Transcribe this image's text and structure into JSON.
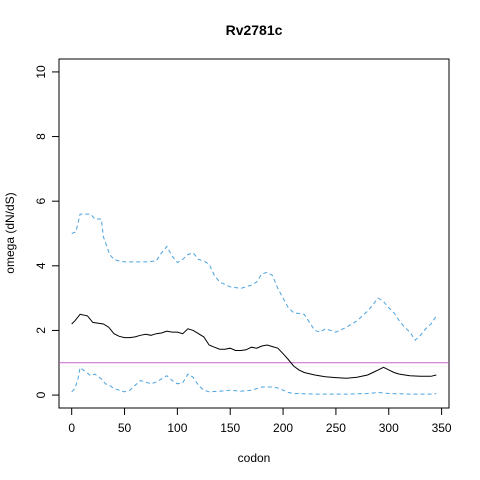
{
  "chart_data": {
    "type": "line",
    "title": "Rv2781c",
    "xlabel": "codon",
    "ylabel": "omega (dN/dS)",
    "xlim": [
      -12,
      357
    ],
    "ylim": [
      -0.4,
      10.4
    ],
    "xticks": [
      0,
      50,
      100,
      150,
      200,
      250,
      300,
      350
    ],
    "yticks": [
      0,
      2,
      4,
      6,
      8,
      10
    ],
    "grid": false,
    "reference_line": {
      "y": 1,
      "color": "#cc66cc"
    },
    "series": [
      {
        "style": "dashed",
        "color": "#4aa3df",
        "x": [
          0,
          4,
          8,
          18,
          22,
          28,
          30,
          36,
          40,
          45,
          50,
          60,
          70,
          80,
          85,
          90,
          95,
          100,
          105,
          110,
          115,
          120,
          125,
          130,
          135,
          140,
          150,
          160,
          170,
          175,
          180,
          185,
          190,
          195,
          200,
          205,
          210,
          220,
          230,
          235,
          240,
          250,
          260,
          270,
          280,
          285,
          290,
          295,
          300,
          305,
          310,
          315,
          320,
          325,
          330,
          335,
          340,
          345
        ],
        "y": [
          5.0,
          5.05,
          5.6,
          5.6,
          5.45,
          5.45,
          4.9,
          4.35,
          4.2,
          4.15,
          4.12,
          4.12,
          4.12,
          4.15,
          4.4,
          4.6,
          4.3,
          4.1,
          4.2,
          4.35,
          4.4,
          4.2,
          4.15,
          4.05,
          3.7,
          3.5,
          3.35,
          3.3,
          3.4,
          3.5,
          3.75,
          3.8,
          3.7,
          3.3,
          3.0,
          2.7,
          2.55,
          2.5,
          2.0,
          1.95,
          2.05,
          1.95,
          2.1,
          2.3,
          2.6,
          2.8,
          3.0,
          2.9,
          2.7,
          2.55,
          2.3,
          2.1,
          1.95,
          1.7,
          1.85,
          2.05,
          2.2,
          2.45
        ]
      },
      {
        "style": "solid",
        "color": "#000000",
        "x": [
          0,
          3,
          8,
          15,
          20,
          30,
          35,
          40,
          45,
          50,
          55,
          60,
          65,
          70,
          75,
          80,
          85,
          90,
          95,
          100,
          105,
          110,
          115,
          120,
          125,
          130,
          135,
          140,
          145,
          150,
          155,
          160,
          165,
          170,
          175,
          180,
          185,
          190,
          195,
          200,
          205,
          210,
          215,
          220,
          230,
          240,
          250,
          260,
          270,
          280,
          285,
          290,
          295,
          300,
          305,
          310,
          320,
          330,
          340,
          345
        ],
        "y": [
          2.2,
          2.3,
          2.5,
          2.45,
          2.25,
          2.2,
          2.1,
          1.9,
          1.82,
          1.78,
          1.78,
          1.8,
          1.85,
          1.88,
          1.85,
          1.9,
          1.92,
          1.98,
          1.95,
          1.95,
          1.9,
          2.05,
          2.0,
          1.9,
          1.8,
          1.55,
          1.48,
          1.42,
          1.42,
          1.45,
          1.38,
          1.38,
          1.4,
          1.48,
          1.45,
          1.52,
          1.55,
          1.5,
          1.45,
          1.28,
          1.1,
          0.9,
          0.78,
          0.7,
          0.62,
          0.57,
          0.54,
          0.52,
          0.55,
          0.62,
          0.7,
          0.78,
          0.86,
          0.78,
          0.7,
          0.65,
          0.6,
          0.58,
          0.58,
          0.62
        ]
      },
      {
        "style": "dashed",
        "color": "#4aa3df",
        "x": [
          0,
          3,
          6,
          8,
          12,
          18,
          22,
          28,
          32,
          36,
          40,
          50,
          55,
          60,
          65,
          70,
          75,
          80,
          85,
          90,
          95,
          100,
          105,
          110,
          115,
          120,
          125,
          130,
          140,
          150,
          160,
          170,
          180,
          190,
          195,
          200,
          205,
          210,
          220,
          230,
          240,
          250,
          260,
          270,
          280,
          290,
          300,
          310,
          320,
          330,
          340,
          345
        ],
        "y": [
          0.1,
          0.2,
          0.5,
          0.85,
          0.75,
          0.6,
          0.65,
          0.5,
          0.35,
          0.3,
          0.2,
          0.1,
          0.15,
          0.3,
          0.45,
          0.4,
          0.35,
          0.4,
          0.5,
          0.6,
          0.45,
          0.35,
          0.38,
          0.65,
          0.55,
          0.3,
          0.15,
          0.1,
          0.12,
          0.15,
          0.12,
          0.15,
          0.25,
          0.25,
          0.22,
          0.15,
          0.08,
          0.05,
          0.04,
          0.03,
          0.03,
          0.03,
          0.03,
          0.04,
          0.05,
          0.08,
          0.05,
          0.04,
          0.03,
          0.03,
          0.03,
          0.05
        ]
      }
    ]
  }
}
